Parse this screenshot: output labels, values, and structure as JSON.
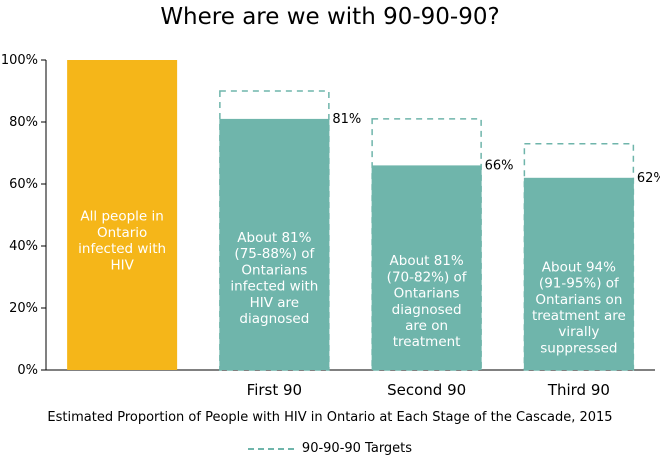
{
  "chart_data": {
    "type": "bar",
    "title": "Where are we with 90-90-90?",
    "xlabel": "Estimated Proportion of People with HIV in Ontario at Each Stage of the Cascade, 2015",
    "ylabel": "",
    "ylim": [
      0,
      100
    ],
    "yticks": [
      "0%",
      "20%",
      "40%",
      "60%",
      "80%",
      "100%"
    ],
    "ytick_values": [
      0,
      20,
      40,
      60,
      80,
      100
    ],
    "grid": false,
    "categories": [
      "",
      "First 90",
      "Second 90",
      "Third 90"
    ],
    "values": [
      100,
      81,
      66,
      62
    ],
    "value_labels": [
      "",
      "81%",
      "66%",
      "62%"
    ],
    "targets": [
      null,
      90,
      81,
      73
    ],
    "bar_texts": [
      [
        "All people in",
        "Ontario",
        "infected with",
        "HIV"
      ],
      [
        "About 81%",
        "(75-88%) of",
        "Ontarians",
        "infected with",
        "HIV are",
        "diagnosed"
      ],
      [
        "About 81%",
        "(70-82%) of",
        "Ontarians",
        "diagnosed",
        "are on",
        "treatment"
      ],
      [
        "About 94%",
        "(91-95%) of",
        "Ontarians on",
        "treatment are",
        "virally",
        "suppressed"
      ]
    ],
    "colors": [
      "#f5b619",
      "#6fb5ab",
      "#6fb5ab",
      "#6fb5ab"
    ],
    "target_color": "#6fb5ab",
    "legend": {
      "position": "bottom",
      "entries": [
        "90-90-90 Targets"
      ]
    }
  }
}
